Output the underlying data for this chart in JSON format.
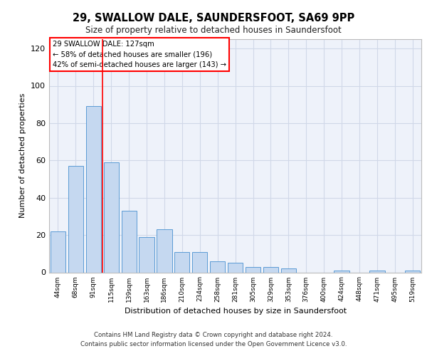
{
  "title1": "29, SWALLOW DALE, SAUNDERSFOOT, SA69 9PP",
  "title2": "Size of property relative to detached houses in Saundersfoot",
  "xlabel": "Distribution of detached houses by size in Saundersfoot",
  "ylabel": "Number of detached properties",
  "categories": [
    "44sqm",
    "68sqm",
    "91sqm",
    "115sqm",
    "139sqm",
    "163sqm",
    "186sqm",
    "210sqm",
    "234sqm",
    "258sqm",
    "281sqm",
    "305sqm",
    "329sqm",
    "353sqm",
    "376sqm",
    "400sqm",
    "424sqm",
    "448sqm",
    "471sqm",
    "495sqm",
    "519sqm"
  ],
  "values": [
    22,
    57,
    89,
    59,
    33,
    19,
    23,
    11,
    11,
    6,
    5,
    3,
    3,
    2,
    0,
    0,
    1,
    0,
    1,
    0,
    1
  ],
  "bar_color": "#c5d8f0",
  "bar_edge_color": "#5b9bd5",
  "annotation_line1": "29 SWALLOW DALE: 127sqm",
  "annotation_line2": "← 58% of detached houses are smaller (196)",
  "annotation_line3": "42% of semi-detached houses are larger (143) →",
  "annotation_box_color": "white",
  "annotation_box_edge_color": "red",
  "vline_x": 2.5,
  "vline_color": "red",
  "ylim": [
    0,
    125
  ],
  "yticks": [
    0,
    20,
    40,
    60,
    80,
    100,
    120
  ],
  "footer": "Contains HM Land Registry data © Crown copyright and database right 2024.\nContains public sector information licensed under the Open Government Licence v3.0.",
  "grid_color": "#d0d8e8",
  "bg_color": "#eef2fa"
}
